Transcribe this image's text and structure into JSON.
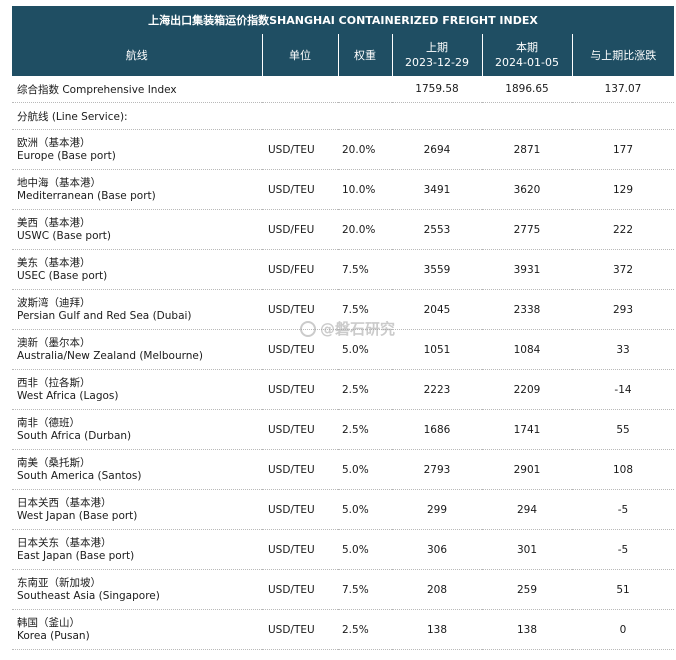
{
  "title": "上海出口集装箱运价指数SHANGHAI CONTAINERIZED FREIGHT INDEX",
  "headers": {
    "route": "航线",
    "unit": "单位",
    "weight": "权重",
    "prev_label": "上期",
    "prev_date": "2023-12-29",
    "curr_label": "本期",
    "curr_date": "2024-01-05",
    "change": "与上期比涨跌"
  },
  "composite": {
    "name": "综合指数 Comprehensive Index",
    "prev": "1759.58",
    "curr": "1896.65",
    "change": "137.07"
  },
  "section_label": "分航线 (Line Service):",
  "rows": [
    {
      "cn": "欧洲（基本港）",
      "en": "Europe (Base port)",
      "unit": "USD/TEU",
      "weight": "20.0%",
      "prev": "2694",
      "curr": "2871",
      "change": "177"
    },
    {
      "cn": "地中海（基本港）",
      "en": "Mediterranean (Base port)",
      "unit": "USD/TEU",
      "weight": "10.0%",
      "prev": "3491",
      "curr": "3620",
      "change": "129"
    },
    {
      "cn": "美西（基本港）",
      "en": "USWC (Base port)",
      "unit": "USD/FEU",
      "weight": "20.0%",
      "prev": "2553",
      "curr": "2775",
      "change": "222"
    },
    {
      "cn": "美东（基本港）",
      "en": "USEC (Base port)",
      "unit": "USD/FEU",
      "weight": "7.5%",
      "prev": "3559",
      "curr": "3931",
      "change": "372"
    },
    {
      "cn": "波斯湾（迪拜）",
      "en": "Persian Gulf and Red Sea (Dubai)",
      "unit": "USD/TEU",
      "weight": "7.5%",
      "prev": "2045",
      "curr": "2338",
      "change": "293"
    },
    {
      "cn": "澳新（墨尔本）",
      "en": "Australia/New Zealand (Melbourne)",
      "unit": "USD/TEU",
      "weight": "5.0%",
      "prev": "1051",
      "curr": "1084",
      "change": "33"
    },
    {
      "cn": "西非（拉各斯）",
      "en": "West Africa (Lagos)",
      "unit": "USD/TEU",
      "weight": "2.5%",
      "prev": "2223",
      "curr": "2209",
      "change": "-14"
    },
    {
      "cn": "南非（德班）",
      "en": "South Africa (Durban)",
      "unit": "USD/TEU",
      "weight": "2.5%",
      "prev": "1686",
      "curr": "1741",
      "change": "55"
    },
    {
      "cn": "南美（桑托斯）",
      "en": "South America (Santos)",
      "unit": "USD/TEU",
      "weight": "5.0%",
      "prev": "2793",
      "curr": "2901",
      "change": "108"
    },
    {
      "cn": "日本关西（基本港）",
      "en": "West Japan (Base port)",
      "unit": "USD/TEU",
      "weight": "5.0%",
      "prev": "299",
      "curr": "294",
      "change": "-5"
    },
    {
      "cn": "日本关东（基本港）",
      "en": "East Japan (Base port)",
      "unit": "USD/TEU",
      "weight": "5.0%",
      "prev": "306",
      "curr": "301",
      "change": "-5"
    },
    {
      "cn": "东南亚（新加坡）",
      "en": "Southeast Asia (Singapore)",
      "unit": "USD/TEU",
      "weight": "7.5%",
      "prev": "208",
      "curr": "259",
      "change": "51"
    },
    {
      "cn": "韩国（釜山）",
      "en": "Korea (Pusan)",
      "unit": "USD/TEU",
      "weight": "2.5%",
      "prev": "138",
      "curr": "138",
      "change": "0"
    }
  ],
  "watermark": "@磐石研究"
}
